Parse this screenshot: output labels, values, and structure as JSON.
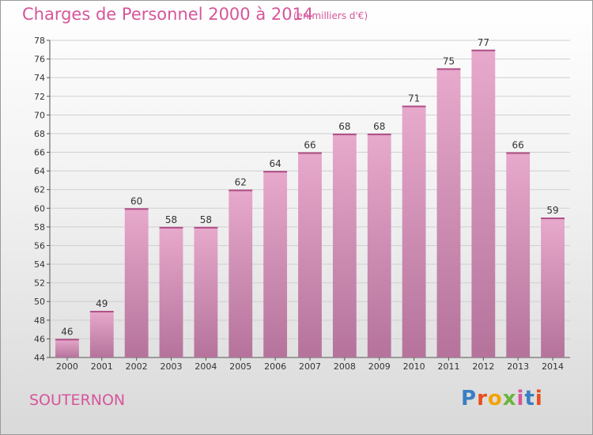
{
  "header": {
    "title": "Charges de Personnel 2000 à 2014",
    "unit": "(en milliers d'€)"
  },
  "footer": {
    "commune": "SOUTERNON",
    "logo_letters": [
      "P",
      "r",
      "o",
      "x",
      "i",
      "t",
      "i"
    ],
    "logo_colors": [
      "#3a7fc4",
      "#e84e1b",
      "#f4a300",
      "#6bb43f",
      "#d6569a",
      "#3a7fc4",
      "#e84e1b"
    ]
  },
  "chart_data": {
    "type": "bar",
    "categories": [
      "2000",
      "2001",
      "2002",
      "2003",
      "2004",
      "2005",
      "2006",
      "2007",
      "2008",
      "2009",
      "2010",
      "2011",
      "2012",
      "2013",
      "2014"
    ],
    "values": [
      46,
      49,
      60,
      58,
      58,
      62,
      64,
      66,
      68,
      68,
      71,
      75,
      77,
      66,
      59
    ],
    "ylim": [
      44,
      78
    ],
    "yticks": [
      44,
      46,
      48,
      50,
      52,
      54,
      56,
      58,
      60,
      62,
      64,
      66,
      68,
      70,
      72,
      74,
      76,
      78
    ],
    "grid": true,
    "bar_color_top": "#e7a9cc",
    "bar_color_bottom": "#b5739b"
  }
}
